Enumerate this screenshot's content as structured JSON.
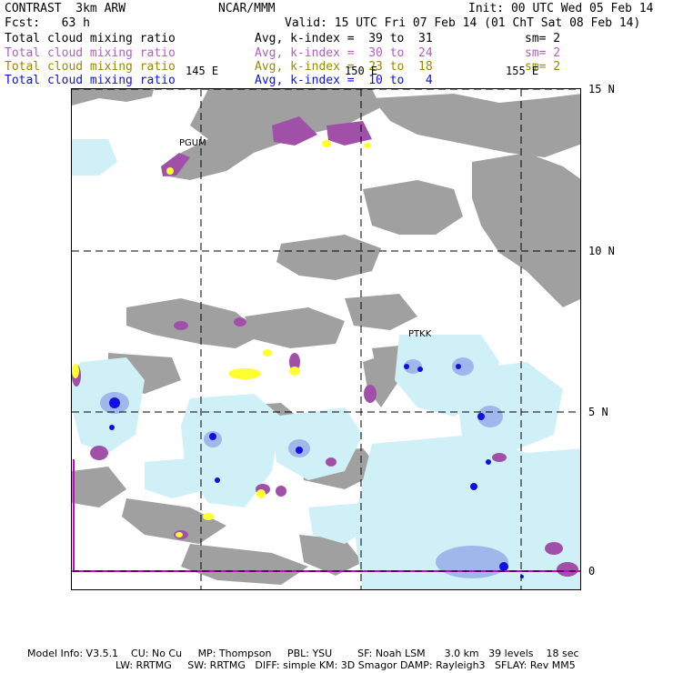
{
  "header": {
    "model": "CONTRAST  3km ARW",
    "center": "NCAR/MMM",
    "init": "Init: 00 UTC Wed 05 Feb 14",
    "fcst": "Fcst:   63 h",
    "valid": "Valid: 15 UTC Fri 07 Feb 14 (01 ChT Sat 08 Feb 14)"
  },
  "legend": [
    {
      "field": "Total cloud mixing ratio",
      "level": "Avg, k-index =  39 to  31",
      "smooth": "sm= 2",
      "color": "#000000"
    },
    {
      "field": "Total cloud mixing ratio",
      "level": "Avg, k-index =  30 to  24",
      "smooth": "sm= 2",
      "color": "#b05fc0"
    },
    {
      "field": "Total cloud mixing ratio",
      "level": "Avg, k-index =  23 to  18",
      "smooth": "sm= 2",
      "color": "#9a8a00"
    },
    {
      "field": "Total cloud mixing ratio",
      "level": "Avg, k-index =  10 to   4",
      "smooth": "",
      "color": "#1010e0"
    }
  ],
  "map": {
    "lon_labels": [
      "145 E",
      "150 E",
      "155 E"
    ],
    "lat_labels": [
      "15 N",
      "10 N",
      "5 N",
      "0"
    ],
    "stations": [
      "PGUM",
      "PTKK"
    ],
    "colors": {
      "gray": "#a0a0a0",
      "lightblue": "#d0f0f8",
      "purple": "#a050a8",
      "yellow": "#ffff30",
      "blue": "#1010e0",
      "magenta": "#d000d0"
    }
  },
  "footer": {
    "line1": "Model Info: V3.5.1    CU: No Cu     MP: Thompson     PBL: YSU        SF: Noah LSM      3.0 km   39 levels    18 sec",
    "line2": "LW: RRTMG     SW: RRTMG   DIFF: simple KM: 3D Smagor DAMP: Rayleigh3   SFLAY: Rev MM5"
  }
}
